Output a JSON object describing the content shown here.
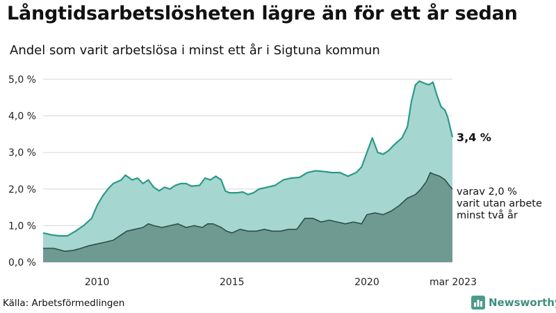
{
  "title": "Långtidsarbetslösheten lägre än för ett år sedan",
  "subtitle": "Andel som varit arbetslösa i minst ett år i Sigtuna kommun",
  "source": "Källa: Arbetsförmedlingen",
  "brand": {
    "name": "Newsworthy",
    "logo_icon": "bar-chart-icon"
  },
  "colors": {
    "total_line": "#2a9a86",
    "total_fill": "#a6d6d0",
    "long_line": "#2c4f47",
    "long_fill": "#6f9a92",
    "grid": "#d5d5d5"
  },
  "chart_data": {
    "type": "area",
    "x_unit": "year",
    "xlim": [
      2008.0,
      2023.17
    ],
    "ylim": [
      0,
      5
    ],
    "y_ticks": [
      {
        "value": 0,
        "label": "0,0 %"
      },
      {
        "value": 1,
        "label": "1,0 %"
      },
      {
        "value": 2,
        "label": "2,0 %"
      },
      {
        "value": 3,
        "label": "3,0 %"
      },
      {
        "value": 4,
        "label": "4,0 %"
      },
      {
        "value": 5,
        "label": "5,0 %"
      }
    ],
    "x_ticks": [
      {
        "value": 2010,
        "label": "2010"
      },
      {
        "value": 2015,
        "label": "2015"
      },
      {
        "value": 2020,
        "label": "2020"
      },
      {
        "value": 2023.17,
        "label": "mar 2023"
      }
    ],
    "grid": true,
    "series": [
      {
        "key": "total",
        "end_label": "3,4 %",
        "points": [
          [
            2008.0,
            0.8
          ],
          [
            2008.3,
            0.75
          ],
          [
            2008.6,
            0.72
          ],
          [
            2008.9,
            0.72
          ],
          [
            2009.2,
            0.85
          ],
          [
            2009.5,
            1.0
          ],
          [
            2009.8,
            1.2
          ],
          [
            2010.0,
            1.55
          ],
          [
            2010.2,
            1.8
          ],
          [
            2010.4,
            2.0
          ],
          [
            2010.6,
            2.15
          ],
          [
            2010.9,
            2.25
          ],
          [
            2011.05,
            2.38
          ],
          [
            2011.3,
            2.25
          ],
          [
            2011.5,
            2.3
          ],
          [
            2011.7,
            2.15
          ],
          [
            2011.9,
            2.25
          ],
          [
            2012.1,
            2.05
          ],
          [
            2012.3,
            1.95
          ],
          [
            2012.5,
            2.05
          ],
          [
            2012.7,
            2.0
          ],
          [
            2012.9,
            2.1
          ],
          [
            2013.1,
            2.15
          ],
          [
            2013.3,
            2.15
          ],
          [
            2013.5,
            2.08
          ],
          [
            2013.8,
            2.1
          ],
          [
            2014.0,
            2.3
          ],
          [
            2014.2,
            2.25
          ],
          [
            2014.4,
            2.35
          ],
          [
            2014.6,
            2.25
          ],
          [
            2014.75,
            1.95
          ],
          [
            2014.9,
            1.9
          ],
          [
            2015.2,
            1.9
          ],
          [
            2015.4,
            1.92
          ],
          [
            2015.6,
            1.85
          ],
          [
            2015.8,
            1.9
          ],
          [
            2016.0,
            2.0
          ],
          [
            2016.3,
            2.05
          ],
          [
            2016.6,
            2.1
          ],
          [
            2016.9,
            2.25
          ],
          [
            2017.2,
            2.3
          ],
          [
            2017.5,
            2.32
          ],
          [
            2017.8,
            2.45
          ],
          [
            2018.1,
            2.5
          ],
          [
            2018.4,
            2.48
          ],
          [
            2018.7,
            2.45
          ],
          [
            2019.0,
            2.45
          ],
          [
            2019.3,
            2.35
          ],
          [
            2019.6,
            2.45
          ],
          [
            2019.8,
            2.6
          ],
          [
            2020.0,
            3.0
          ],
          [
            2020.2,
            3.4
          ],
          [
            2020.4,
            3.0
          ],
          [
            2020.6,
            2.95
          ],
          [
            2020.8,
            3.05
          ],
          [
            2021.0,
            3.2
          ],
          [
            2021.3,
            3.4
          ],
          [
            2021.5,
            3.7
          ],
          [
            2021.65,
            4.4
          ],
          [
            2021.8,
            4.85
          ],
          [
            2021.95,
            4.95
          ],
          [
            2022.1,
            4.9
          ],
          [
            2022.3,
            4.85
          ],
          [
            2022.45,
            4.92
          ],
          [
            2022.6,
            4.55
          ],
          [
            2022.75,
            4.25
          ],
          [
            2022.9,
            4.15
          ],
          [
            2023.0,
            3.95
          ],
          [
            2023.08,
            3.7
          ],
          [
            2023.17,
            3.42
          ]
        ]
      },
      {
        "key": "long",
        "end_label": "varav 2,0 % varit utan arbete minst två år",
        "end_label_lines": [
          "varav 2,0 %",
          "varit utan arbete",
          "minst två år"
        ],
        "points": [
          [
            2008.0,
            0.38
          ],
          [
            2008.4,
            0.38
          ],
          [
            2008.8,
            0.3
          ],
          [
            2009.1,
            0.32
          ],
          [
            2009.4,
            0.38
          ],
          [
            2009.7,
            0.45
          ],
          [
            2010.0,
            0.5
          ],
          [
            2010.3,
            0.55
          ],
          [
            2010.6,
            0.6
          ],
          [
            2010.9,
            0.75
          ],
          [
            2011.1,
            0.85
          ],
          [
            2011.4,
            0.9
          ],
          [
            2011.7,
            0.95
          ],
          [
            2011.9,
            1.05
          ],
          [
            2012.1,
            1.0
          ],
          [
            2012.4,
            0.95
          ],
          [
            2012.7,
            1.0
          ],
          [
            2013.0,
            1.05
          ],
          [
            2013.3,
            0.95
          ],
          [
            2013.6,
            1.0
          ],
          [
            2013.9,
            0.95
          ],
          [
            2014.1,
            1.05
          ],
          [
            2014.3,
            1.05
          ],
          [
            2014.6,
            0.95
          ],
          [
            2014.8,
            0.85
          ],
          [
            2015.0,
            0.8
          ],
          [
            2015.3,
            0.9
          ],
          [
            2015.6,
            0.85
          ],
          [
            2015.9,
            0.85
          ],
          [
            2016.2,
            0.9
          ],
          [
            2016.5,
            0.85
          ],
          [
            2016.8,
            0.85
          ],
          [
            2017.1,
            0.9
          ],
          [
            2017.4,
            0.9
          ],
          [
            2017.7,
            1.2
          ],
          [
            2018.0,
            1.2
          ],
          [
            2018.3,
            1.1
          ],
          [
            2018.6,
            1.15
          ],
          [
            2018.9,
            1.1
          ],
          [
            2019.2,
            1.05
          ],
          [
            2019.5,
            1.1
          ],
          [
            2019.8,
            1.05
          ],
          [
            2020.0,
            1.3
          ],
          [
            2020.3,
            1.35
          ],
          [
            2020.6,
            1.3
          ],
          [
            2020.9,
            1.4
          ],
          [
            2021.2,
            1.55
          ],
          [
            2021.5,
            1.75
          ],
          [
            2021.8,
            1.85
          ],
          [
            2022.0,
            2.0
          ],
          [
            2022.2,
            2.2
          ],
          [
            2022.35,
            2.45
          ],
          [
            2022.5,
            2.4
          ],
          [
            2022.7,
            2.35
          ],
          [
            2022.9,
            2.25
          ],
          [
            2023.05,
            2.1
          ],
          [
            2023.17,
            2.0
          ]
        ]
      }
    ]
  }
}
